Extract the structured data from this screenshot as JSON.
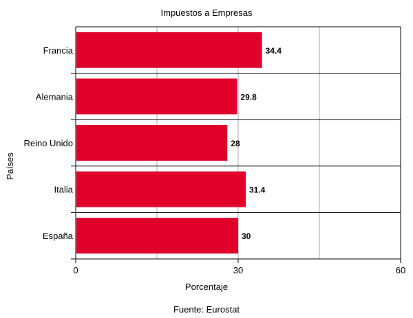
{
  "chart_data": {
    "type": "bar",
    "orientation": "horizontal",
    "title": "Impuestos a Empresas",
    "xlabel": "Porcentaje",
    "ylabel": "Países",
    "categories": [
      "Francia",
      "Alemania",
      "Reino Unido",
      "Italia",
      "España"
    ],
    "values": [
      34.4,
      29.8,
      28,
      31.4,
      30
    ],
    "value_labels": [
      "34.4",
      "29.8",
      "28",
      "31.4",
      "30"
    ],
    "xlim": [
      0,
      60
    ],
    "x_ticks": [
      0,
      30,
      60
    ],
    "x_tick_labels": [
      "0",
      "30",
      "60"
    ],
    "minor_gridlines": [
      15,
      45
    ],
    "grid": true,
    "bar_color": "#e0002a",
    "source": "Fuente: Eurostat"
  }
}
